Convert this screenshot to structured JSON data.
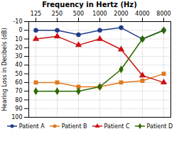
{
  "chart_data": {
    "type": "line",
    "title": "Frequency in Hertz (Hz)",
    "ylabel": "Hearing Loss in Decibels (dB)",
    "categories": [
      "125",
      "250",
      "500",
      "1000",
      "2000",
      "4000",
      "8000"
    ],
    "series": [
      {
        "name": "Patient A",
        "color": "#1f3c88",
        "marker": "circle",
        "values": [
          0,
          0,
          5,
          0,
          -3,
          10,
          0
        ]
      },
      {
        "name": "Patient B",
        "color": "#e07820",
        "marker": "square",
        "values": [
          60,
          60,
          65,
          65,
          60,
          58,
          50
        ]
      },
      {
        "name": "Patient C",
        "color": "#cc1111",
        "marker": "triangle",
        "values": [
          10,
          7,
          17,
          10,
          22,
          52,
          60
        ]
      },
      {
        "name": "Patient D",
        "color": "#2d6a00",
        "marker": "diamond",
        "values": [
          70,
          70,
          70,
          65,
          45,
          10,
          0
        ]
      }
    ],
    "ylim": [
      100,
      -10
    ],
    "yticks": [
      -10,
      0,
      10,
      20,
      30,
      40,
      50,
      60,
      70,
      80,
      90,
      100
    ],
    "grid": true,
    "legend": "bottom"
  }
}
